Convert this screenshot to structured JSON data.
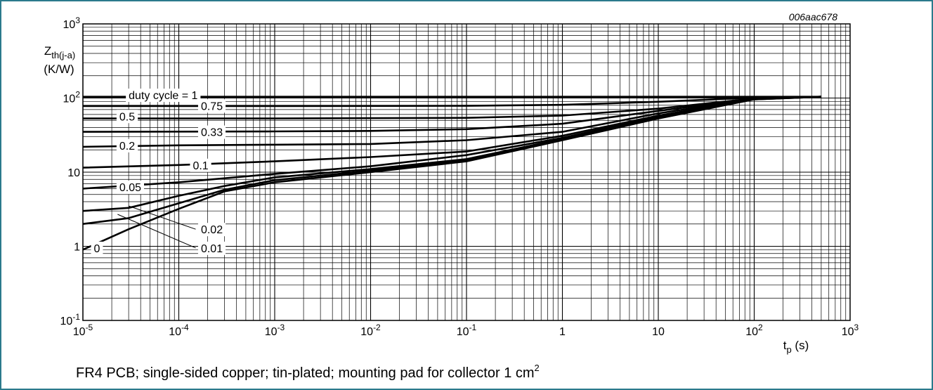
{
  "figure_id": "006aac678",
  "caption": {
    "text": "FR4 PCB; single-sided copper; tin-plated; mounting pad for collector 1 cm",
    "superscript": "2"
  },
  "chart_data": {
    "type": "line",
    "title": "",
    "xlabel": {
      "base": "t",
      "sub": "p",
      "unit": " (s)"
    },
    "ylabel": {
      "base": "Z",
      "sub": "th(j-a)",
      "unit": "(K/W)"
    },
    "x_scale": "log",
    "y_scale": "log",
    "xlim": [
      1e-05,
      1000
    ],
    "ylim": [
      0.1,
      1000
    ],
    "grid": true,
    "x_ticks": [
      {
        "value": 1e-05,
        "base": "10",
        "exp": "-5"
      },
      {
        "value": 0.0001,
        "base": "10",
        "exp": "-4"
      },
      {
        "value": 0.001,
        "base": "10",
        "exp": "-3"
      },
      {
        "value": 0.01,
        "base": "10",
        "exp": "-2"
      },
      {
        "value": 0.1,
        "base": "10",
        "exp": "-1"
      },
      {
        "value": 1,
        "base": "1",
        "exp": ""
      },
      {
        "value": 10,
        "base": "10",
        "exp": ""
      },
      {
        "value": 100,
        "base": "10",
        "exp": "2"
      },
      {
        "value": 1000,
        "base": "10",
        "exp": "3"
      }
    ],
    "y_ticks": [
      {
        "value": 0.1,
        "base": "10",
        "exp": "-1"
      },
      {
        "value": 1,
        "base": "1",
        "exp": ""
      },
      {
        "value": 10,
        "base": "10",
        "exp": ""
      },
      {
        "value": 100,
        "base": "10",
        "exp": "2"
      },
      {
        "value": 1000,
        "base": "10",
        "exp": "3"
      }
    ],
    "series": [
      {
        "name": "duty cycle = 1",
        "label_x": 3e-05,
        "label_y": 110,
        "x": [
          1e-05,
          500
        ],
        "y": [
          104,
          104
        ]
      },
      {
        "name": "0.75",
        "label_x": 0.00017,
        "label_y": 79,
        "x": [
          1e-05,
          0.001,
          0.1,
          1,
          10,
          100,
          500
        ],
        "y": [
          78,
          78,
          78.5,
          81,
          89,
          101,
          104
        ]
      },
      {
        "name": "0.5",
        "label_x": 2.4e-05,
        "label_y": 57,
        "x": [
          1e-05,
          0.001,
          0.1,
          1,
          10,
          100,
          500
        ],
        "y": [
          53,
          53,
          54,
          58,
          72,
          99,
          104
        ]
      },
      {
        "name": "0.33",
        "label_x": 0.00017,
        "label_y": 35,
        "x": [
          1e-05,
          0.001,
          0.01,
          0.1,
          1,
          10,
          100,
          500
        ],
        "y": [
          35,
          35.5,
          36,
          38,
          45,
          67,
          98,
          104
        ]
      },
      {
        "name": "0.2",
        "label_x": 2.4e-05,
        "label_y": 23,
        "x": [
          1e-05,
          0.0001,
          0.001,
          0.01,
          0.1,
          1,
          10,
          100,
          500
        ],
        "y": [
          22,
          23,
          23.5,
          24,
          27,
          35,
          62,
          98,
          104
        ]
      },
      {
        "name": "0.1",
        "label_x": 0.00014,
        "label_y": 12.5,
        "x": [
          1e-05,
          0.0001,
          0.001,
          0.01,
          0.1,
          1,
          10,
          100,
          500
        ],
        "y": [
          11.5,
          12.5,
          14,
          16,
          19,
          31,
          58,
          97,
          104
        ]
      },
      {
        "name": "0.05",
        "label_x": 2.4e-05,
        "label_y": 6.3,
        "x": [
          1e-05,
          0.0001,
          0.001,
          0.01,
          0.1,
          1,
          10,
          100,
          500
        ],
        "y": [
          6,
          7.3,
          9.5,
          12,
          17,
          29,
          56,
          97,
          104
        ]
      },
      {
        "name": "0.02",
        "label_x": 0.00017,
        "label_y": 1.7,
        "x": [
          1e-05,
          3e-05,
          0.0001,
          0.0003,
          0.001,
          0.01,
          0.1,
          1,
          10,
          100,
          500
        ],
        "y": [
          3,
          3.3,
          4.8,
          6.5,
          8.5,
          11,
          15,
          28,
          55,
          97,
          104
        ]
      },
      {
        "name": "0.01",
        "label_x": 0.00017,
        "label_y": 0.95,
        "x": [
          1e-05,
          3e-05,
          0.0001,
          0.0003,
          0.001,
          0.01,
          0.1,
          1,
          10,
          100,
          500
        ],
        "y": [
          2,
          2.4,
          3.8,
          5.8,
          7.8,
          10.5,
          14.5,
          27.5,
          54,
          96,
          104
        ]
      },
      {
        "name": "0",
        "label_x": 1.3e-05,
        "label_y": 0.95,
        "x": [
          1e-05,
          3e-05,
          0.0001,
          0.0003,
          0.001,
          0.01,
          0.1,
          1,
          10,
          100,
          500
        ],
        "y": [
          0.9,
          1.7,
          3.2,
          5.5,
          7.3,
          10,
          14,
          27,
          53,
          96,
          104
        ]
      }
    ]
  }
}
